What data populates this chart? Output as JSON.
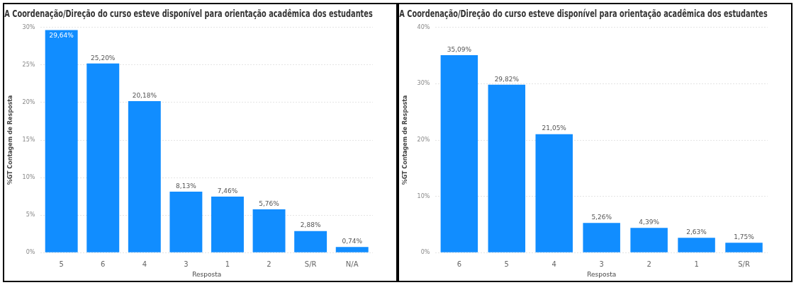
{
  "chart_data": [
    {
      "type": "bar",
      "title": "A Coordenação/Direção do curso esteve disponível para orientação acadêmica dos estudantes",
      "xlabel": "Resposta",
      "ylabel": "%GT Contagem de Resposta",
      "categories": [
        "5",
        "6",
        "4",
        "3",
        "1",
        "2",
        "S/R",
        "N/A"
      ],
      "values": [
        29.64,
        25.2,
        20.18,
        8.13,
        7.46,
        5.76,
        2.88,
        0.74
      ],
      "value_labels": [
        "29,64%",
        "25,20%",
        "20,18%",
        "8,13%",
        "7,46%",
        "5,76%",
        "2,88%",
        "0,74%"
      ],
      "color": "#118dff",
      "ylim": [
        0,
        30
      ],
      "yticks": [
        {
          "value": 0,
          "label": "0%"
        },
        {
          "value": 5,
          "label": "5%"
        },
        {
          "value": 10,
          "label": "10%"
        },
        {
          "value": 15,
          "label": "15%"
        },
        {
          "value": 20,
          "label": "20%"
        },
        {
          "value": 25,
          "label": "25%"
        },
        {
          "value": 30,
          "label": "30%"
        }
      ],
      "grid": "y"
    },
    {
      "type": "bar",
      "title": "A Coordenação/Direção do curso esteve disponível para orientação acadêmica dos estudantes",
      "xlabel": "Resposta",
      "ylabel": "%GT Contagem de Resposta",
      "categories": [
        "6",
        "5",
        "4",
        "3",
        "2",
        "1",
        "S/R"
      ],
      "values": [
        35.09,
        29.82,
        21.05,
        5.26,
        4.39,
        2.63,
        1.75
      ],
      "value_labels": [
        "35,09%",
        "29,82%",
        "21,05%",
        "5,26%",
        "4,39%",
        "2,63%",
        "1,75%"
      ],
      "color": "#118dff",
      "ylim": [
        0,
        40
      ],
      "yticks": [
        {
          "value": 0,
          "label": "0%"
        },
        {
          "value": 10,
          "label": "10%"
        },
        {
          "value": 20,
          "label": "20%"
        },
        {
          "value": 30,
          "label": "30%"
        },
        {
          "value": 40,
          "label": "40%"
        }
      ],
      "grid": "y"
    }
  ]
}
